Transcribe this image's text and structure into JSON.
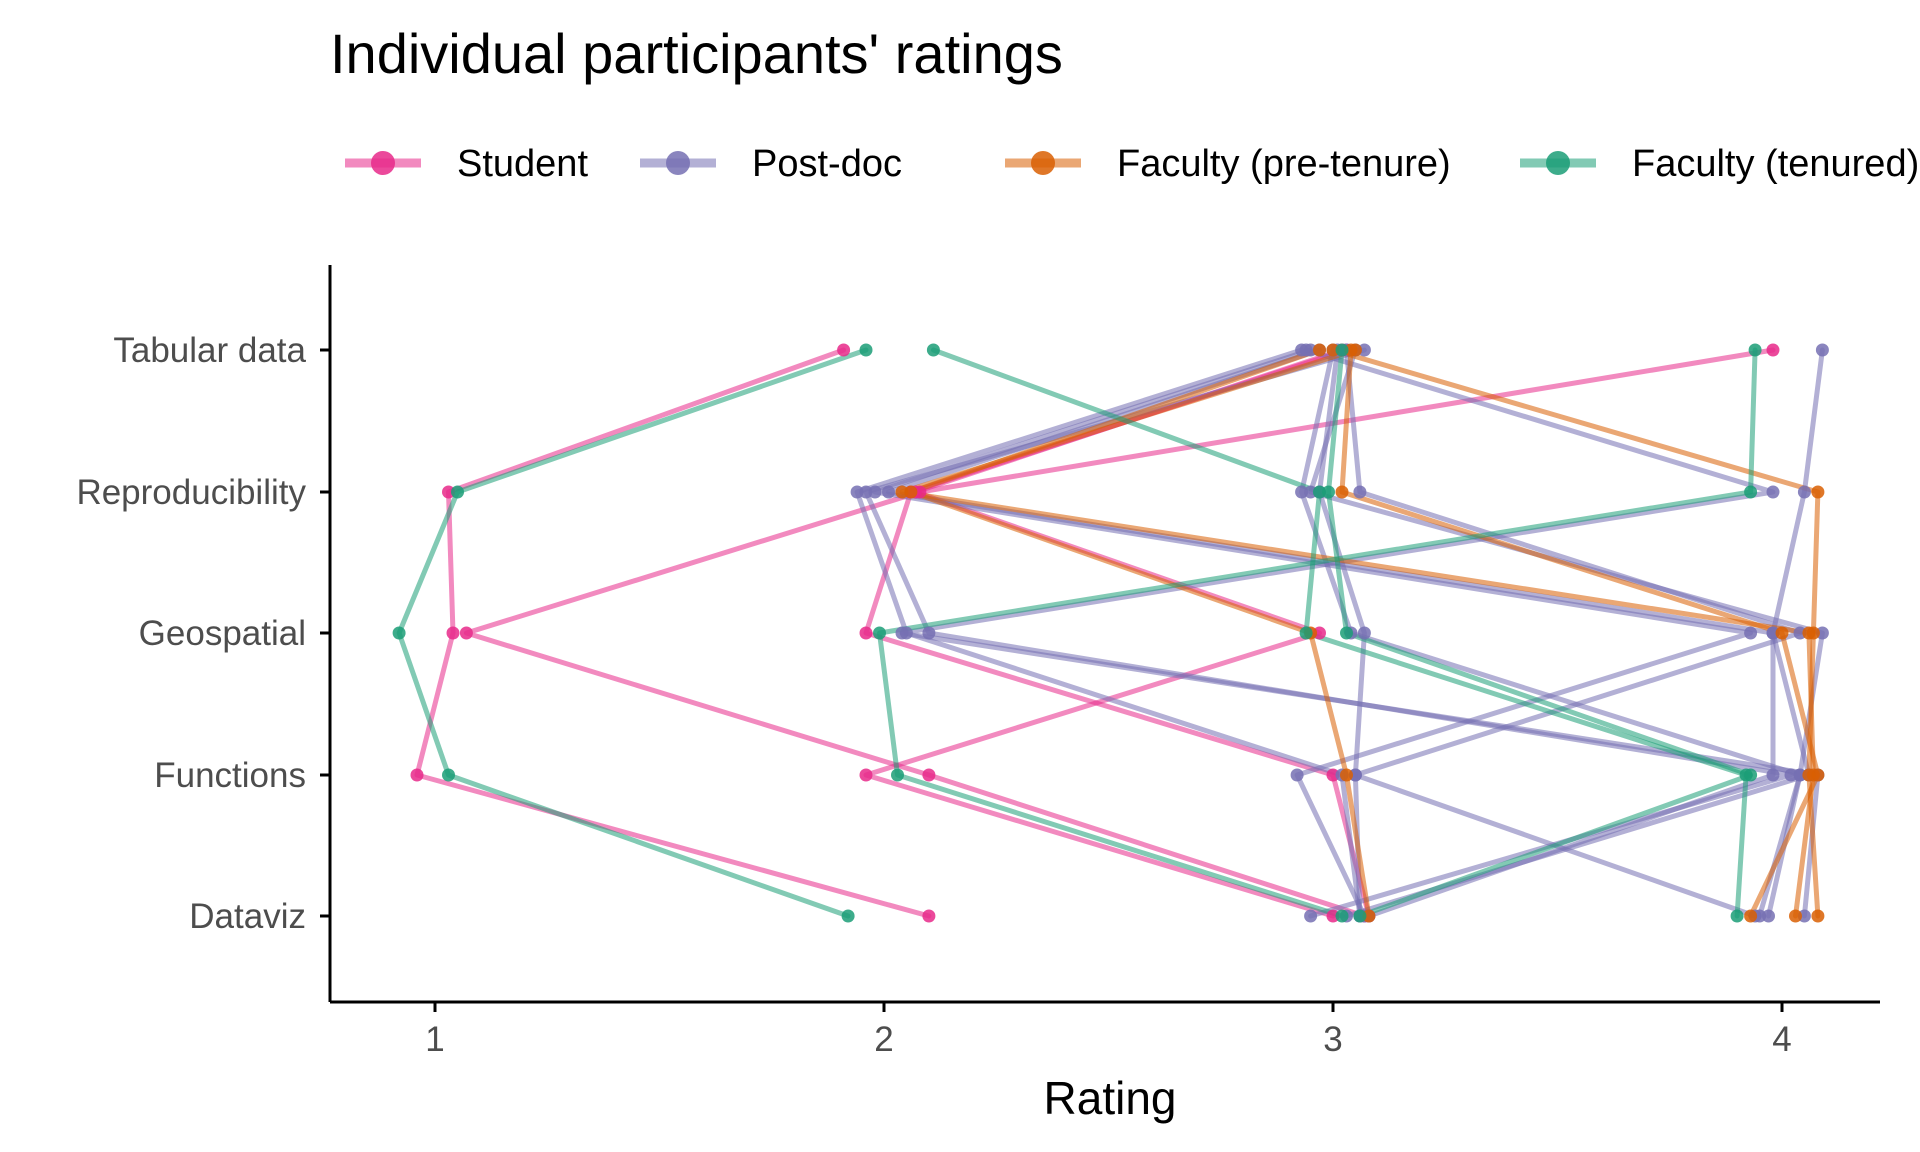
{
  "chart_data": {
    "type": "line",
    "title": "Individual participants' ratings",
    "xlabel": "Rating",
    "ylabel": "",
    "xlim": [
      0.75,
      4.25
    ],
    "x_ticks": [
      1,
      2,
      3,
      4
    ],
    "x_tick_labels": [
      "1",
      "2",
      "3",
      "4"
    ],
    "categories": [
      "Tabular data",
      "Reproducibility",
      "Geospatial",
      "Functions",
      "Dataviz"
    ],
    "grid": false,
    "legend": {
      "position": "top",
      "entries": [
        "Student",
        "Post-doc",
        "Faculty (pre-tenure)",
        "Faculty (tenured)"
      ]
    },
    "colors": {
      "Student": "#e7298a",
      "Post-doc": "#7570b3",
      "Faculty (pre-tenure)": "#d95f02",
      "Faculty (tenured)": "#1b9e77"
    },
    "series": [
      {
        "group": "Student",
        "values": [
          1.91,
          1.03,
          1.04,
          0.96,
          2.1
        ]
      },
      {
        "group": "Student",
        "values": [
          3.98,
          2.08,
          1.07,
          2.1,
          3.07
        ]
      },
      {
        "group": "Student",
        "values": [
          3.03,
          2.06,
          1.96,
          3.0,
          3.08
        ]
      },
      {
        "group": "Student",
        "values": [
          3.02,
          2.07,
          2.97,
          1.96,
          3.0
        ]
      },
      {
        "group": "Post-doc",
        "values": [
          2.93,
          1.94,
          2.05,
          3.02,
          3.06
        ]
      },
      {
        "group": "Post-doc",
        "values": [
          3.07,
          1.96,
          2.1,
          4.02,
          2.95
        ]
      },
      {
        "group": "Post-doc",
        "values": [
          2.95,
          1.98,
          3.93,
          2.92,
          3.07
        ]
      },
      {
        "group": "Post-doc",
        "values": [
          2.97,
          2.01,
          3.98,
          4.06,
          3.03
        ]
      },
      {
        "group": "Post-doc",
        "values": [
          3.0,
          2.93,
          3.04,
          4.04,
          3.97
        ]
      },
      {
        "group": "Post-doc",
        "values": [
          3.03,
          3.06,
          4.04,
          3.05,
          3.94
        ]
      },
      {
        "group": "Post-doc",
        "values": [
          4.09,
          4.05,
          3.98,
          3.98,
          3.08
        ]
      },
      {
        "group": "Post-doc",
        "values": [
          2.94,
          3.98,
          2.04,
          4.08,
          4.05
        ]
      },
      {
        "group": "Post-doc",
        "values": [
          3.05,
          2.95,
          4.09,
          4.04,
          3.95
        ]
      },
      {
        "group": "Post-doc",
        "values": [
          3.01,
          2.97,
          3.07,
          3.05,
          3.06
        ]
      },
      {
        "group": "Faculty (pre-tenure)",
        "values": [
          3.05,
          2.04,
          4.06,
          4.07,
          4.03
        ]
      },
      {
        "group": "Faculty (pre-tenure)",
        "values": [
          2.97,
          2.06,
          2.95,
          3.03,
          3.08
        ]
      },
      {
        "group": "Faculty (pre-tenure)",
        "values": [
          3.04,
          3.02,
          4.0,
          4.08,
          3.93
        ]
      },
      {
        "group": "Faculty (pre-tenure)",
        "values": [
          3.0,
          4.08,
          4.07,
          4.06,
          4.08
        ]
      },
      {
        "group": "Faculty (tenured)",
        "values": [
          1.96,
          1.05,
          0.92,
          1.03,
          1.92
        ]
      },
      {
        "group": "Faculty (tenured)",
        "values": [
          2.11,
          2.97,
          2.94,
          3.92,
          3.9
        ]
      },
      {
        "group": "Faculty (tenured)",
        "values": [
          3.94,
          3.93,
          1.99,
          2.03,
          3.02
        ]
      },
      {
        "group": "Faculty (tenured)",
        "values": [
          3.02,
          2.99,
          3.03,
          3.93,
          3.06
        ]
      }
    ]
  }
}
